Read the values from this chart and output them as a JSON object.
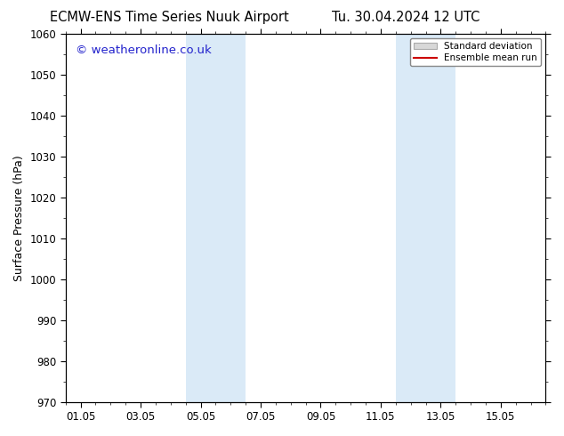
{
  "title_left": "ECMW-ENS Time Series Nuuk Airport",
  "title_right": "Tu. 30.04.2024 12 UTC",
  "ylabel": "Surface Pressure (hPa)",
  "ylim": [
    970,
    1060
  ],
  "yticks": [
    970,
    980,
    990,
    1000,
    1010,
    1020,
    1030,
    1040,
    1050,
    1060
  ],
  "xtick_labels": [
    "01.05",
    "03.05",
    "05.05",
    "07.05",
    "09.05",
    "11.05",
    "13.05",
    "15.05"
  ],
  "xtick_positions": [
    0,
    2,
    4,
    6,
    8,
    10,
    12,
    14
  ],
  "xlim": [
    -0.5,
    15.5
  ],
  "shaded_regions": [
    {
      "x_start": 3.5,
      "x_end": 5.5,
      "color": "#daeaf7"
    },
    {
      "x_start": 10.5,
      "x_end": 12.5,
      "color": "#daeaf7"
    }
  ],
  "watermark_text": "© weatheronline.co.uk",
  "watermark_color": "#2222cc",
  "background_color": "#ffffff",
  "plot_bg_color": "#ffffff",
  "legend_std_dev_facecolor": "#d8d8d8",
  "legend_std_dev_edgecolor": "#aaaaaa",
  "legend_mean_run_color": "#cc0000",
  "title_fontsize": 10.5,
  "axis_label_fontsize": 9,
  "tick_fontsize": 8.5,
  "watermark_fontsize": 9.5
}
